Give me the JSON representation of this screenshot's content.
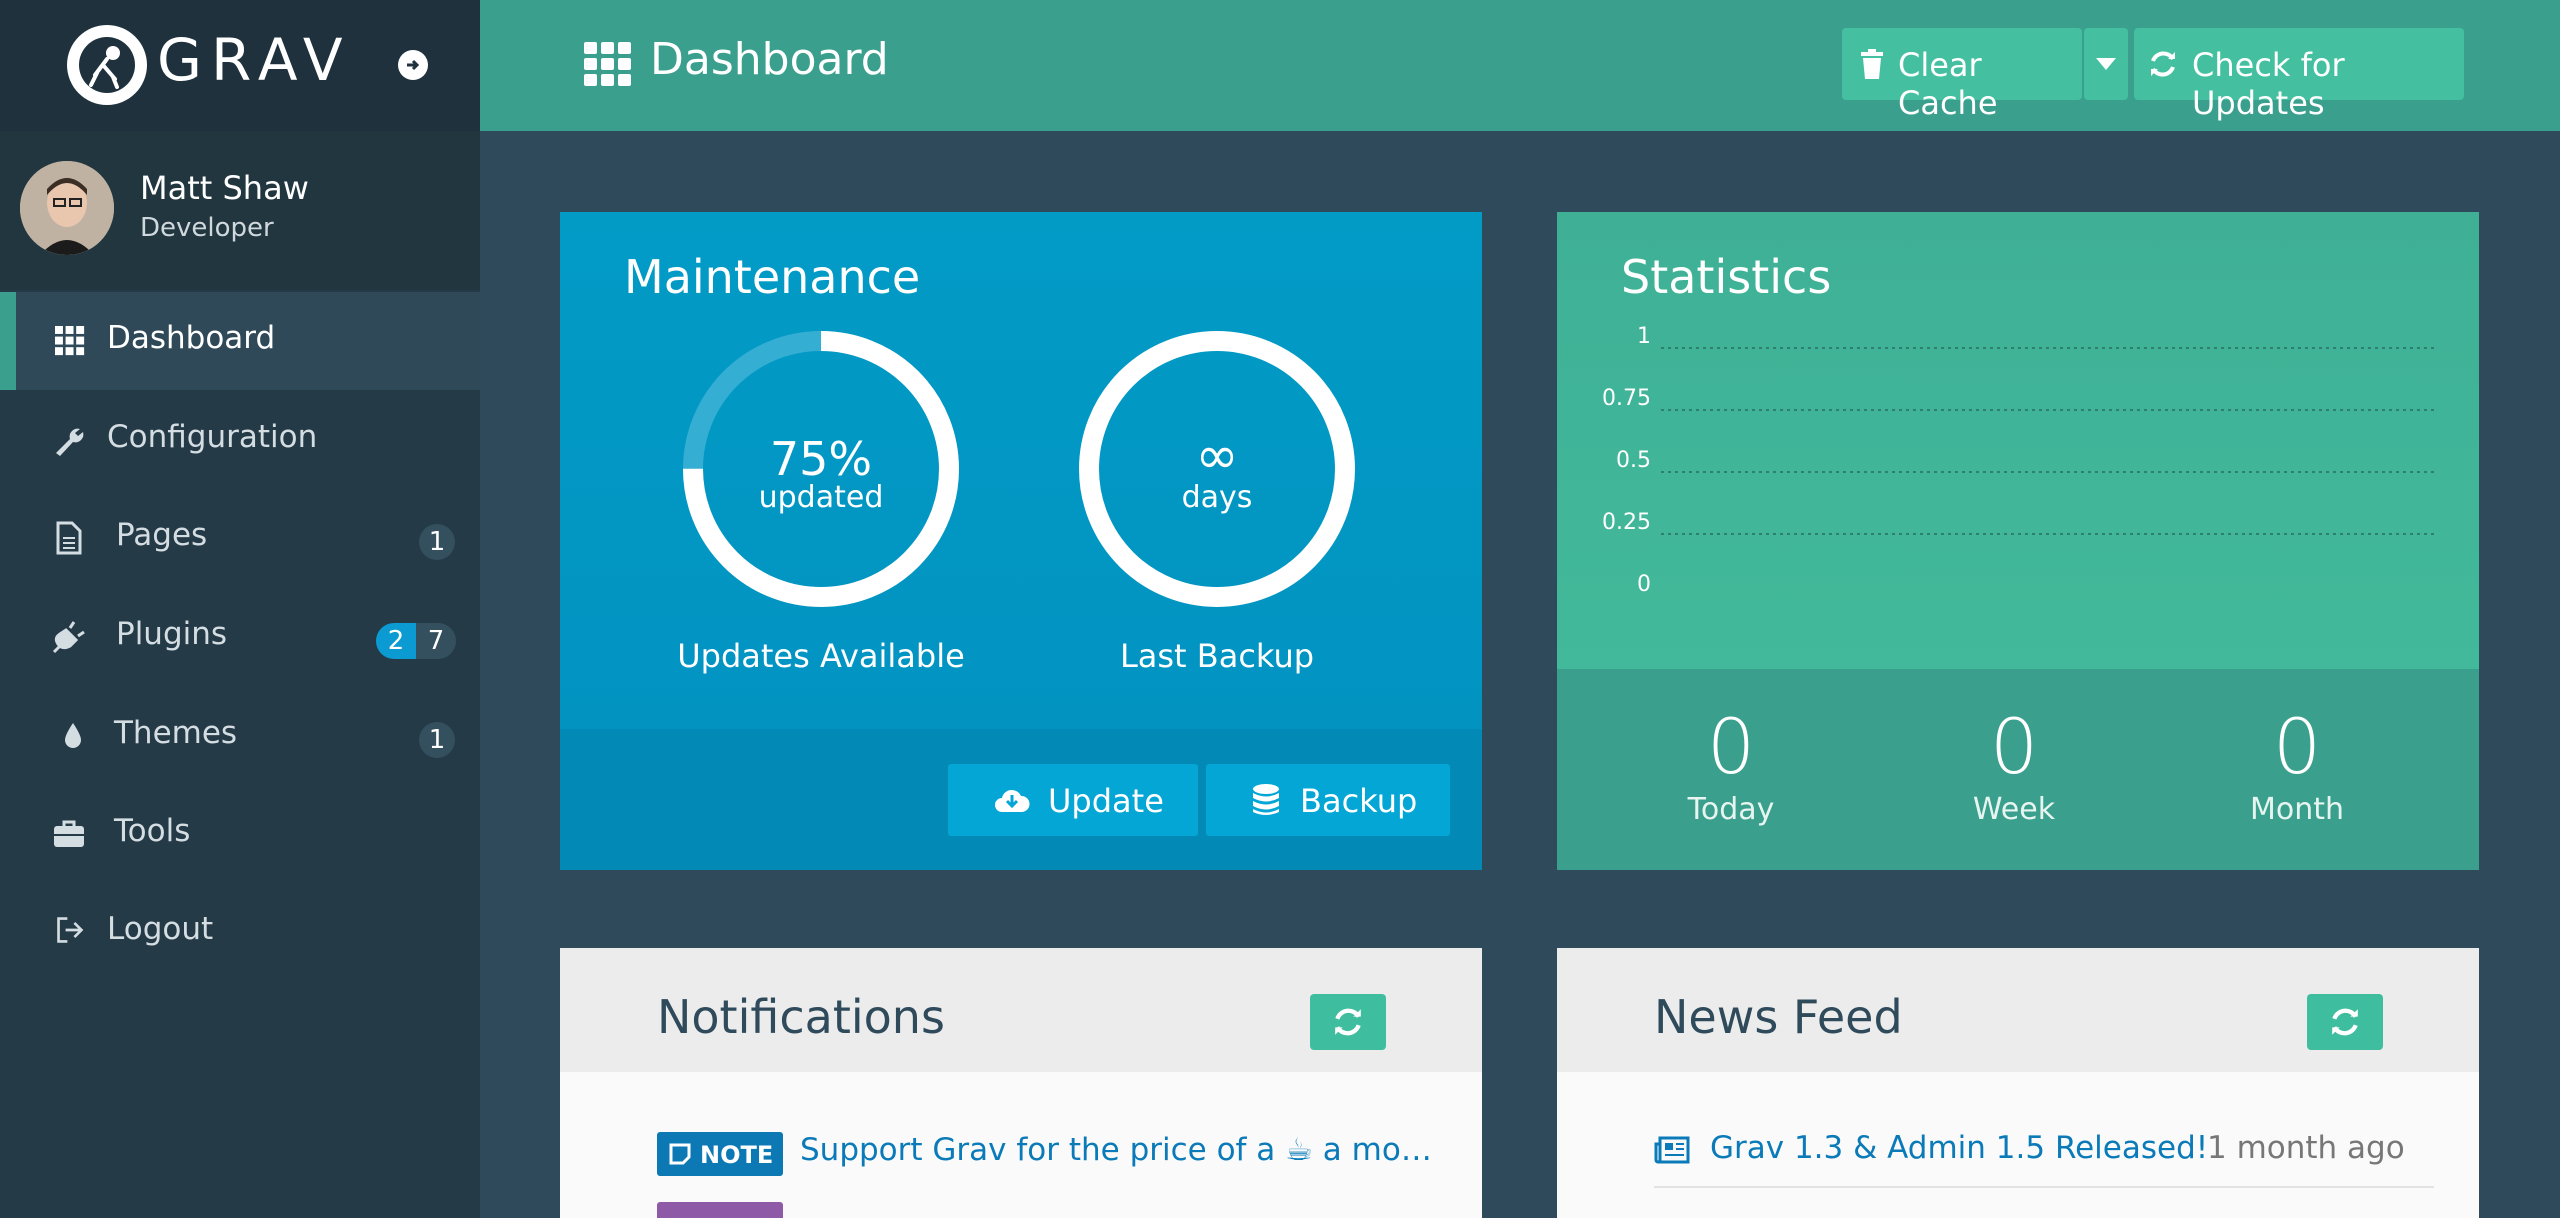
{
  "brand": {
    "logo_text": "GRAV"
  },
  "user": {
    "name": "Matt Shaw",
    "role": "Developer"
  },
  "nav": [
    {
      "label": "Dashboard",
      "icon": "grid-icon",
      "active": true
    },
    {
      "label": "Configuration",
      "icon": "wrench-icon"
    },
    {
      "label": "Pages",
      "icon": "file-icon",
      "badge": "1"
    },
    {
      "label": "Plugins",
      "icon": "plug-icon",
      "badge_updates": "2",
      "badge_total": "7"
    },
    {
      "label": "Themes",
      "icon": "tint-icon",
      "badge": "1"
    },
    {
      "label": "Tools",
      "icon": "briefcase-icon"
    },
    {
      "label": "Logout",
      "icon": "sign-out-icon"
    }
  ],
  "header": {
    "title": "Dashboard",
    "clear_cache_label": "Clear Cache",
    "check_updates_label": "Check for Updates"
  },
  "maintenance": {
    "title": "Maintenance",
    "updated_percent": 75,
    "updated_value": "75%",
    "updated_unit": "updated",
    "updates_caption": "Updates Available",
    "backup_value": "∞",
    "backup_unit": "days",
    "backup_caption": "Last Backup",
    "update_button": "Update",
    "backup_button": "Backup"
  },
  "statistics": {
    "title": "Statistics",
    "y_ticks": [
      "1",
      "0.75",
      "0.5",
      "0.25",
      "0"
    ],
    "today_value": "0",
    "today_label": "Today",
    "week_value": "0",
    "week_label": "Week",
    "month_value": "0",
    "month_label": "Month"
  },
  "notifications": {
    "title": "Notifications",
    "items": [
      {
        "tag": "NOTE",
        "text": "Support Grav for the price of a ☕ a mo…"
      }
    ]
  },
  "news": {
    "title": "News Feed",
    "items": [
      {
        "text": "Grav 1.3 & Admin 1.5 Released!",
        "time": "1 month ago"
      }
    ]
  },
  "colors": {
    "sidebar": "#253a47",
    "header": "#3a9f8c",
    "maintenance": "#029bc6",
    "statistics": "#3fb096",
    "link": "#0a7ab8"
  }
}
